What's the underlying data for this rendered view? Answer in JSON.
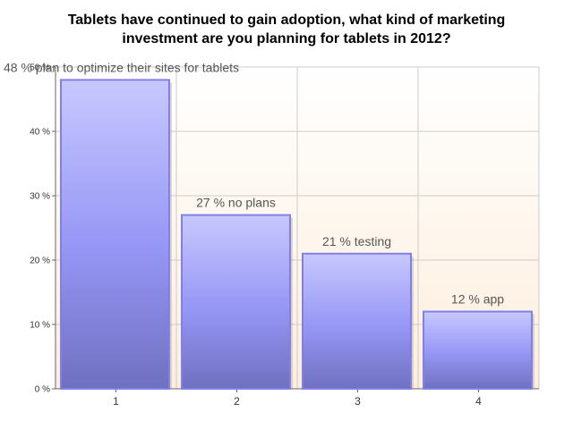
{
  "chart_data": {
    "type": "bar",
    "title_lines": [
      "Tablets have continued to gain adoption, what kind of marketing",
      "investment are you planning for tablets in 2012?"
    ],
    "categories": [
      "1",
      "2",
      "3",
      "4"
    ],
    "values": [
      48,
      27,
      21,
      12
    ],
    "data_labels": [
      "48 % plan to optimize their sites for tablets",
      "27 % no plans",
      "21 % testing",
      "12 % app"
    ],
    "yticks": [
      0,
      10,
      20,
      30,
      40,
      50
    ],
    "ytick_labels": [
      "0 %",
      "10 %",
      "20 %",
      "30 %",
      "40 %",
      "50 %"
    ],
    "ylim": [
      0,
      50
    ],
    "grid": true,
    "xlabel": "",
    "ylabel": ""
  },
  "colors": {
    "bar_top": "#c8c8ff",
    "bar_mid": "#9595f5",
    "bar_bottom": "#7070c0",
    "bar_border": "#8080e8",
    "plot_bg_top": "#ffffff",
    "plot_bg_bottom": "#fdeedc",
    "grid": "#cccccc"
  }
}
